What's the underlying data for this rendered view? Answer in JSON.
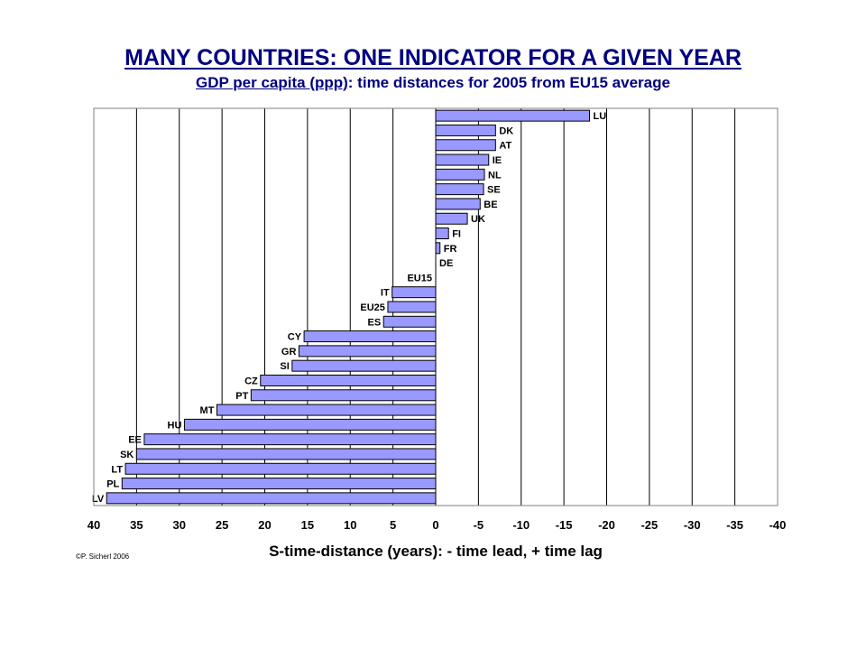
{
  "title": "MANY COUNTRIES: ONE INDICATOR FOR A GIVEN YEAR",
  "subtitle": {
    "part1": "GDP per capita (ppp)",
    "part2": ": time distances for 2005 from EU15 average"
  },
  "credit": "©P. Sicherl 2006",
  "colors": {
    "title": "#000080",
    "bar_fill": "#9999ff",
    "bar_stroke": "#000000",
    "grid": "#000000"
  },
  "chart_data": {
    "type": "bar",
    "orientation": "horizontal",
    "categories": [
      "LU",
      "DK",
      "AT",
      "IE",
      "NL",
      "SE",
      "BE",
      "UK",
      "FI",
      "FR",
      "DE",
      "EU15",
      "IT",
      "EU25",
      "ES",
      "CY",
      "GR",
      "SI",
      "CZ",
      "PT",
      "MT",
      "HU",
      "EE",
      "SK",
      "LT",
      "PL",
      "LV"
    ],
    "values": [
      -18.0,
      -7.0,
      -7.0,
      -6.2,
      -5.7,
      -5.6,
      -5.2,
      -3.7,
      -1.5,
      -0.5,
      0.0,
      0.0,
      5.1,
      5.6,
      6.1,
      15.4,
      16.0,
      16.8,
      20.5,
      21.6,
      25.6,
      29.4,
      34.1,
      35.0,
      36.3,
      36.7,
      38.5
    ],
    "xlabel": "S-time-distance (years): - time lead, + time lag",
    "ylabel": "",
    "xlim": [
      40,
      -40
    ],
    "xticks": [
      "40",
      "35",
      "30",
      "25",
      "20",
      "15",
      "10",
      "5",
      "0",
      "-5",
      "-10",
      "-15",
      "-20",
      "-25",
      "-30",
      "-35",
      "-40"
    ],
    "grid": "vertical"
  }
}
